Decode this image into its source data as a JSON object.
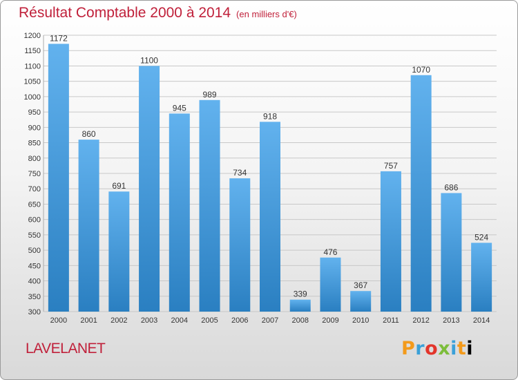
{
  "title": "Résultat Comptable 2000 à 2014",
  "subtitle": "(en milliers d'€)",
  "place": "LAVELANET",
  "logo_text": "Proxiti",
  "colors": {
    "title": "#c0203a",
    "bar_top": "#62b2ee",
    "bar_bottom": "#2a7fc1",
    "grid": "#c8c8c8"
  },
  "chart_data": {
    "type": "bar",
    "title": "Résultat Comptable 2000 à 2014",
    "subtitle": "(en milliers d'€)",
    "categories": [
      "2000",
      "2001",
      "2002",
      "2003",
      "2004",
      "2005",
      "2006",
      "2007",
      "2008",
      "2009",
      "2010",
      "2011",
      "2012",
      "2013",
      "2014"
    ],
    "values": [
      1172,
      860,
      691,
      1100,
      945,
      989,
      734,
      918,
      339,
      476,
      367,
      757,
      1070,
      686,
      524
    ],
    "ylim": [
      300,
      1200
    ],
    "ytick_step": 50,
    "grid": true,
    "xlabel": "",
    "ylabel": ""
  }
}
